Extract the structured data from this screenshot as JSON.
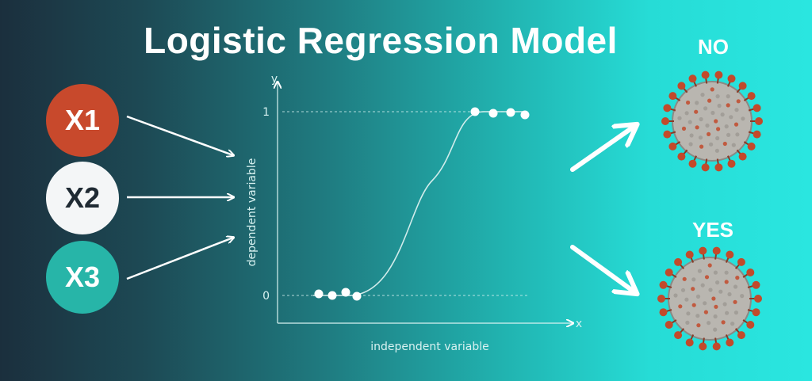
{
  "title": "Logistic Regression Model",
  "inputs": [
    {
      "label": "X1",
      "bg": "#c8492c",
      "fg": "#ffffff"
    },
    {
      "label": "X2",
      "bg": "#f4f6f7",
      "fg": "#1f2a33"
    },
    {
      "label": "X3",
      "bg": "#27b5a8",
      "fg": "#ffffff"
    }
  ],
  "plot": {
    "y_axis_letter": "y",
    "x_axis_letter": "x",
    "y_tick_top": "1",
    "y_tick_bottom": "0",
    "ylabel": "dependent variable",
    "xlabel": "independent variable"
  },
  "outcomes": [
    {
      "label": "NO",
      "icon": "virus-icon"
    },
    {
      "label": "YES",
      "icon": "virus-icon"
    }
  ],
  "colors": {
    "virus_body": "#b9b6b0",
    "virus_spike": "#c24a2b",
    "arrow": "#ffffff"
  }
}
